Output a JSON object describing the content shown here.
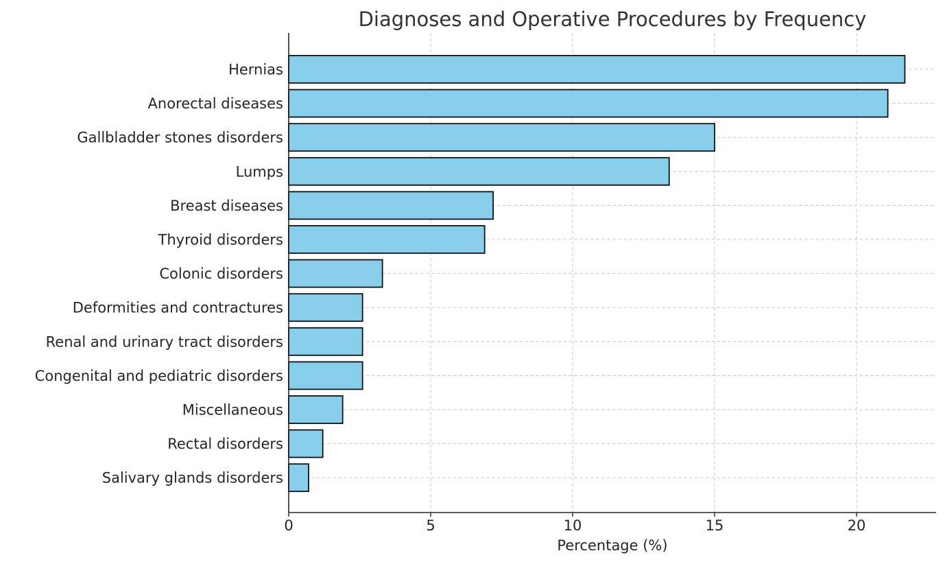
{
  "chart_data": {
    "type": "bar",
    "orientation": "horizontal",
    "title": "Diagnoses and Operative Procedures by Frequency",
    "xlabel": "Percentage (%)",
    "ylabel": "",
    "xlim": [
      0,
      22.8
    ],
    "xticks": [
      0,
      5,
      10,
      15,
      20
    ],
    "grid": true,
    "bar_color": "#87CEEB",
    "edge_color": "#111111",
    "categories": [
      "Hernias",
      "Anorectal diseases",
      "Gallbladder stones disorders",
      "Lumps",
      "Breast diseases",
      "Thyroid disorders",
      "Colonic disorders",
      "Deformities and contractures",
      "Renal and urinary tract disorders",
      "Congenital and pediatric disorders",
      "Miscellaneous",
      "Rectal disorders",
      "Salivary glands disorders"
    ],
    "values": [
      21.7,
      21.1,
      15.0,
      13.4,
      7.2,
      6.9,
      3.3,
      2.6,
      2.6,
      2.6,
      1.9,
      1.2,
      0.7
    ]
  }
}
